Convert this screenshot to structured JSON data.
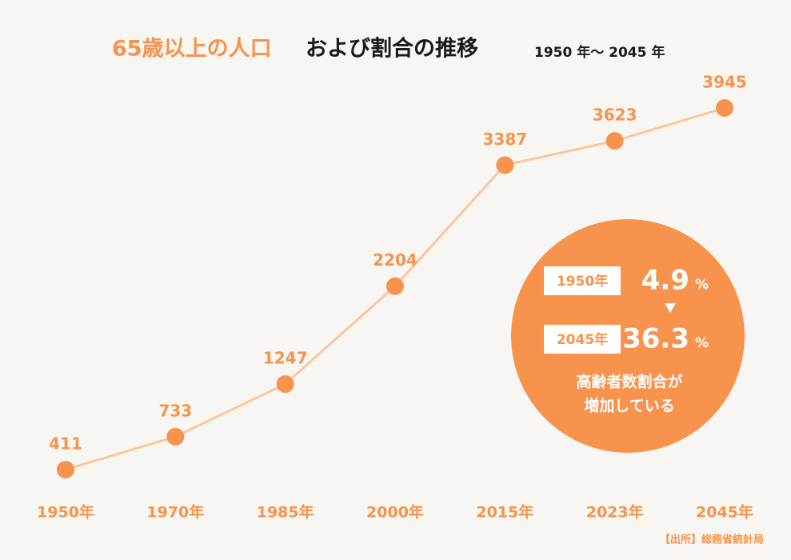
{
  "chart_data": {
    "type": "line",
    "title": {
      "highlight": "65歳以上の人口",
      "rest": "および割合の推移"
    },
    "subtitle": "1950 年〜 2045 年",
    "categories": [
      "1950年",
      "1970年",
      "1985年",
      "2000年",
      "2015年",
      "2023年",
      "2045年"
    ],
    "values": [
      411,
      733,
      1247,
      2204,
      3387,
      3623,
      3945
    ],
    "color": "#f7934c",
    "line_color": "#fbc59e",
    "callout": {
      "rows": [
        {
          "year": "1950年",
          "value": 4.9,
          "unit": "%"
        },
        {
          "year": "2045年",
          "value": 36.3,
          "unit": "%"
        }
      ],
      "text": [
        "高齢者数割合が",
        "増加している"
      ]
    },
    "source": "【出所】総務省統計局"
  }
}
